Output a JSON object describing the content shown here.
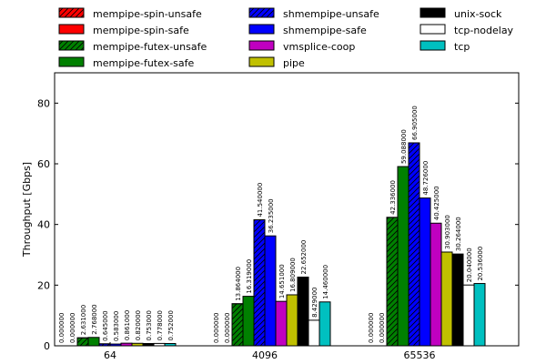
{
  "chart_data": {
    "type": "bar",
    "title": "",
    "xlabel": "",
    "ylabel": "Throughput [Gbps]",
    "ylim": [
      0,
      90
    ],
    "yticks": [
      0,
      20,
      40,
      60,
      80
    ],
    "categories": [
      "64",
      "4096",
      "65536"
    ],
    "legend_placement": "top",
    "series": [
      {
        "name": "mempipe-spin-unsafe",
        "color": "#ff0000",
        "hatch": true,
        "values": [
          0.0,
          0.0,
          0.0
        ],
        "labels": [
          "0.000000",
          "0.000000",
          "0.000000"
        ]
      },
      {
        "name": "mempipe-spin-safe",
        "color": "#ff0000",
        "hatch": false,
        "values": [
          0.0,
          0.0,
          0.0
        ],
        "labels": [
          "0.000000",
          "0.000000",
          "0.000000"
        ]
      },
      {
        "name": "mempipe-futex-unsafe",
        "color": "#008000",
        "hatch": true,
        "values": [
          2.631,
          13.864,
          42.336
        ],
        "labels": [
          "2.631000",
          "13.864000",
          "42.336000"
        ]
      },
      {
        "name": "mempipe-futex-safe",
        "color": "#008000",
        "hatch": false,
        "values": [
          2.768,
          16.319,
          59.088
        ],
        "labels": [
          "2.768000",
          "16.319000",
          "59.088000"
        ]
      },
      {
        "name": "shmempipe-unsafe",
        "color": "#0000ff",
        "hatch": true,
        "values": [
          0.645,
          41.54,
          66.905
        ],
        "labels": [
          "0.645000",
          "41.540000",
          "66.905000"
        ]
      },
      {
        "name": "shmempipe-safe",
        "color": "#0000ff",
        "hatch": false,
        "values": [
          0.583,
          36.235,
          48.726
        ],
        "labels": [
          "0.583000",
          "36.235000",
          "48.726000"
        ]
      },
      {
        "name": "vmsplice-coop",
        "color": "#c000c0",
        "hatch": false,
        "values": [
          0.861,
          14.651,
          40.425
        ],
        "labels": [
          "0.861000",
          "14.651000",
          "40.425000"
        ]
      },
      {
        "name": "pipe",
        "color": "#c0c000",
        "hatch": false,
        "values": [
          0.82,
          16.809,
          30.903
        ],
        "labels": [
          "0.820000",
          "16.809000",
          "30.903000"
        ]
      },
      {
        "name": "unix-sock",
        "color": "#000000",
        "hatch": false,
        "values": [
          0.753,
          22.652,
          30.264
        ],
        "labels": [
          "0.753000",
          "22.652000",
          "30.264000"
        ]
      },
      {
        "name": "tcp-nodelay",
        "color": "#ffffff",
        "hatch": false,
        "values": [
          0.778,
          8.429,
          20.04
        ],
        "labels": [
          "0.778000",
          "8.429000",
          "20.040000"
        ]
      },
      {
        "name": "tcp",
        "color": "#00c0c0",
        "hatch": false,
        "values": [
          0.752,
          14.46,
          20.536
        ],
        "labels": [
          "0.752000",
          "14.460000",
          "20.536000"
        ]
      }
    ]
  }
}
